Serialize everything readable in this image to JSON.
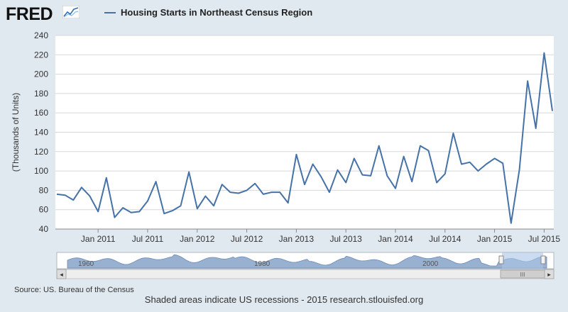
{
  "logo": {
    "text": "FRED",
    "icon": "line-graph-icon"
  },
  "legend": {
    "label": "Housing Starts in Northeast Census Region",
    "color": "#4572a7"
  },
  "footer": {
    "source": "Source: US. Bureau of the Census",
    "note": "Shaded areas indicate US recessions - 2015 research.stlouisfed.org"
  },
  "navigator": {
    "labels": [
      "1960",
      "1980",
      "2000"
    ],
    "arrow_left": "◂",
    "arrow_right": "▸",
    "scroll_grip": "III"
  },
  "chart_data": {
    "type": "line",
    "title": "Housing Starts in Northeast Census Region",
    "ylabel": "(Thousands of Units)",
    "xlabel": "",
    "ylim": [
      40,
      240
    ],
    "yticks": [
      40,
      60,
      80,
      100,
      120,
      140,
      160,
      180,
      200,
      220,
      240
    ],
    "xlim": [
      "2010-08",
      "2015-10"
    ],
    "xticks": [
      {
        "label": "Jan 2011",
        "month": 5
      },
      {
        "label": "Jul 2011",
        "month": 11
      },
      {
        "label": "Jan 2012",
        "month": 17
      },
      {
        "label": "Jul 2012",
        "month": 23
      },
      {
        "label": "Jan 2013",
        "month": 29
      },
      {
        "label": "Jul 2013",
        "month": 35
      },
      {
        "label": "Jan 2014",
        "month": 41
      },
      {
        "label": "Jul 2014",
        "month": 47
      },
      {
        "label": "Jan 2015",
        "month": 53
      },
      {
        "label": "Jul 2015",
        "month": 59
      }
    ],
    "series": [
      {
        "name": "Housing Starts in Northeast Census Region",
        "start": "2010-08",
        "values": [
          76,
          75,
          70,
          83,
          74,
          58,
          93,
          52,
          62,
          57,
          58,
          69,
          89,
          56,
          59,
          64,
          99,
          61,
          74,
          64,
          86,
          78,
          77,
          80,
          87,
          76,
          78,
          78,
          67,
          117,
          86,
          107,
          94,
          78,
          101,
          88,
          113,
          96,
          95,
          126,
          95,
          82,
          115,
          89,
          126,
          121,
          88,
          97,
          139,
          107,
          109,
          100,
          107,
          113,
          108,
          46,
          101,
          193,
          144,
          222,
          162
        ]
      }
    ]
  }
}
